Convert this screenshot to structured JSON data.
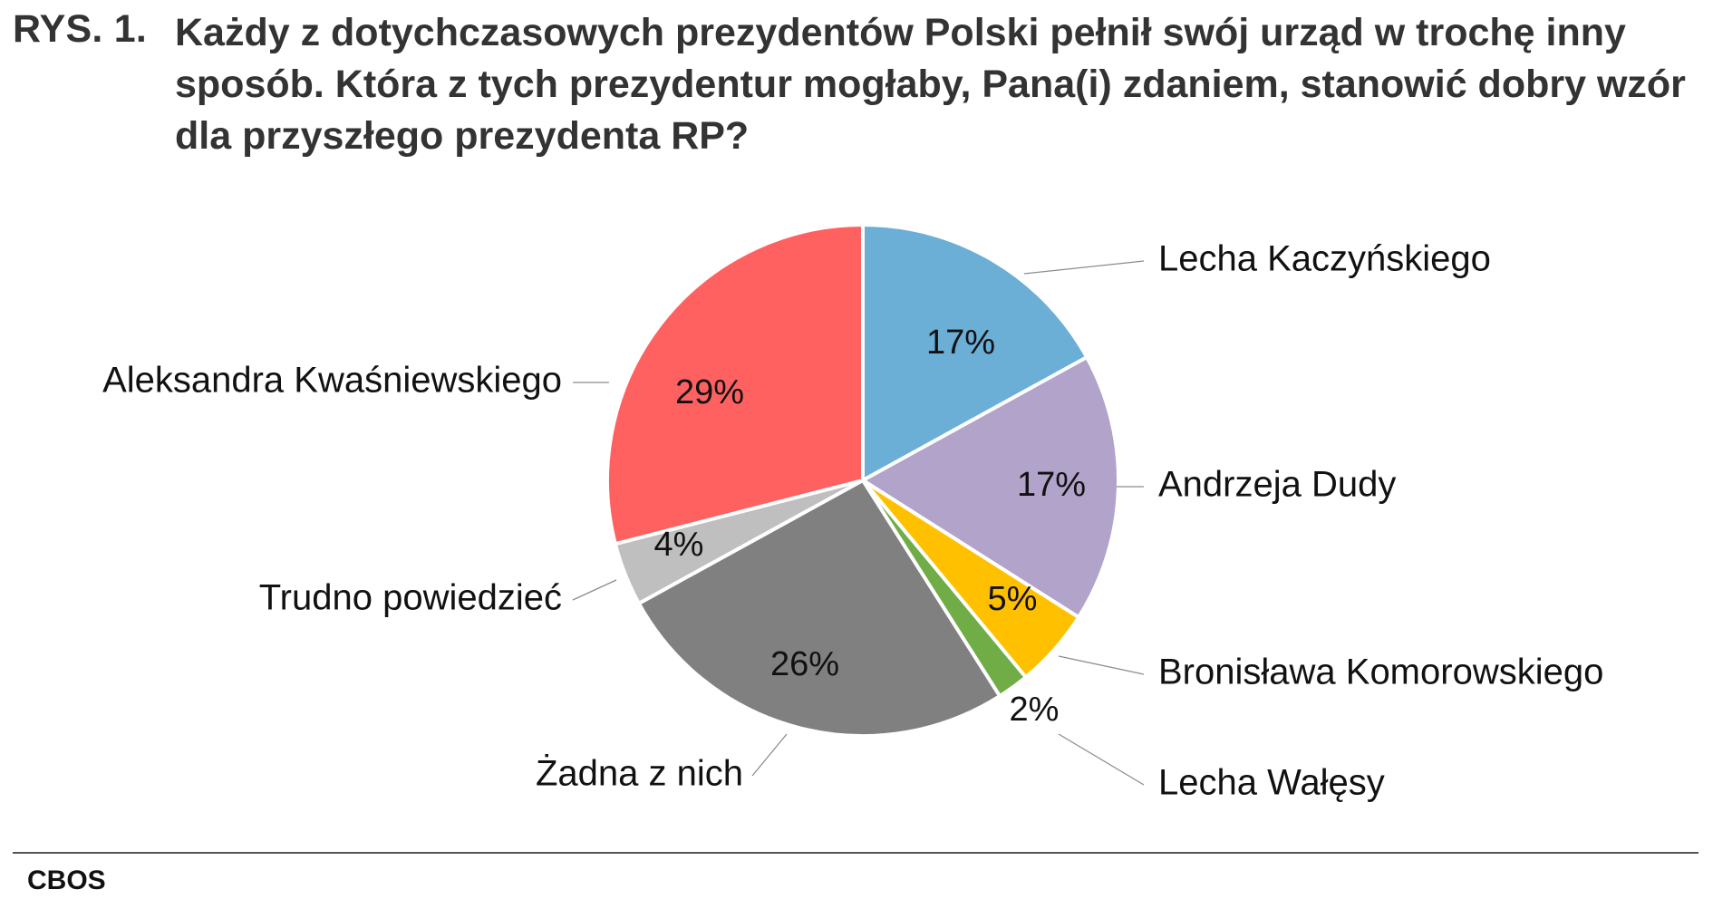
{
  "figure": {
    "label": "RYS. 1.",
    "title": "Każdy z dotychczasowych prezydentów Polski pełnił swój urząd w trochę inny sposób. Która z tych prezydentur mogłaby, Pana(i) zdaniem, stanowić dobry wzór dla przyszłego prezydenta RP?"
  },
  "chart_data": {
    "type": "pie",
    "title": "Każdy z dotychczasowych prezydentów Polski pełnił swój urząd w trochę inny sposób. Która z tych prezydentur mogłaby, Pana(i) zdaniem, stanowić dobry wzór dla przyszłego prezydenta RP?",
    "start": "12 o'clock",
    "direction": "clockwise",
    "slices": [
      {
        "label": "Lecha Kaczyńskiego",
        "value": 17,
        "value_label": "17%",
        "color": "#6baed6"
      },
      {
        "label": "Andrzeja Dudy",
        "value": 17,
        "value_label": "17%",
        "color": "#b1a3c9"
      },
      {
        "label": "Bronisława Komorowskiego",
        "value": 5,
        "value_label": "5%",
        "color": "#ffc000"
      },
      {
        "label": "Lecha Wałęsy",
        "value": 2,
        "value_label": "2%",
        "color": "#70ad47"
      },
      {
        "label": "Żadna z nich",
        "value": 26,
        "value_label": "26%",
        "color": "#808080"
      },
      {
        "label": "Trudno powiedzieć",
        "value": 4,
        "value_label": "4%",
        "color": "#bfbfbf"
      },
      {
        "label": "Aleksandra Kwaśniewskiego",
        "value": 29,
        "value_label": "29%",
        "color": "#ff6161"
      }
    ],
    "legend": "none (labels outside slices with leader lines)"
  },
  "footer": {
    "source": "CBOS"
  }
}
